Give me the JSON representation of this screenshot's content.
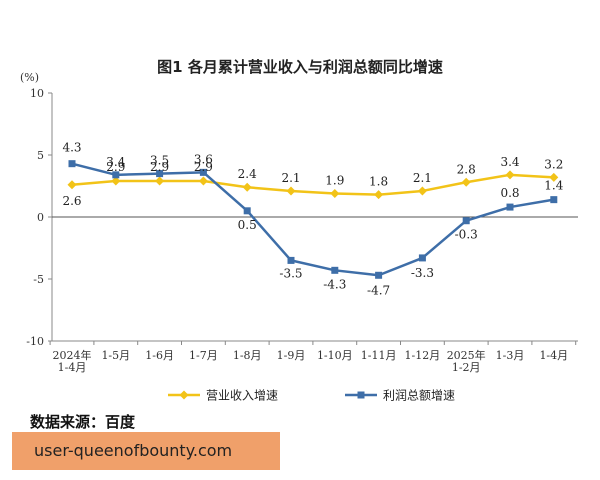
{
  "colors": {
    "revenue": "#f2c318",
    "profit": "#3e6ea8",
    "axis": "#888888",
    "banner": "#f0a06a"
  },
  "source_text": "数据来源：百度",
  "url_text": "user-queenofbounty.com",
  "chart_data": {
    "type": "line",
    "title": "图1 各月累计营业收入与利润总额同比增速",
    "unit": "(%)",
    "categories": [
      [
        "2024年",
        "1-4月"
      ],
      [
        "1-5月"
      ],
      [
        "1-6月"
      ],
      [
        "1-7月"
      ],
      [
        "1-8月"
      ],
      [
        "1-9月"
      ],
      [
        "1-10月"
      ],
      [
        "1-11月"
      ],
      [
        "1-12月"
      ],
      [
        "2025年",
        "1-2月"
      ],
      [
        "1-3月"
      ],
      [
        "1-4月"
      ]
    ],
    "ylim": [
      -10,
      10
    ],
    "yticks": [
      10,
      5,
      0,
      -5,
      -10
    ],
    "ytick_labels": [
      "10",
      "5",
      "0",
      "-5",
      "-10"
    ],
    "series": [
      {
        "name": "营业收入增速",
        "color_key": "revenue",
        "values": [
          2.6,
          2.9,
          2.9,
          2.9,
          2.4,
          2.1,
          1.9,
          1.8,
          2.1,
          2.8,
          3.4,
          3.2
        ],
        "labels": [
          "2.6",
          "2.9",
          "2.9",
          "2.9",
          "2.4",
          "2.1",
          "1.9",
          "1.8",
          "2.1",
          "2.8",
          "3.4",
          "3.2"
        ]
      },
      {
        "name": "利润总额增速",
        "color_key": "profit",
        "values": [
          4.3,
          3.4,
          3.5,
          3.6,
          0.5,
          -3.5,
          -4.3,
          -4.7,
          -3.3,
          -0.3,
          0.8,
          1.4
        ],
        "labels": [
          "4.3",
          "3.4",
          "3.5",
          "3.6",
          "0.5",
          "-3.5",
          "-4.3",
          "-4.7",
          "-3.3",
          "-0.3",
          "0.8",
          "1.4"
        ]
      }
    ],
    "legend_position": "bottom",
    "grid": false
  }
}
